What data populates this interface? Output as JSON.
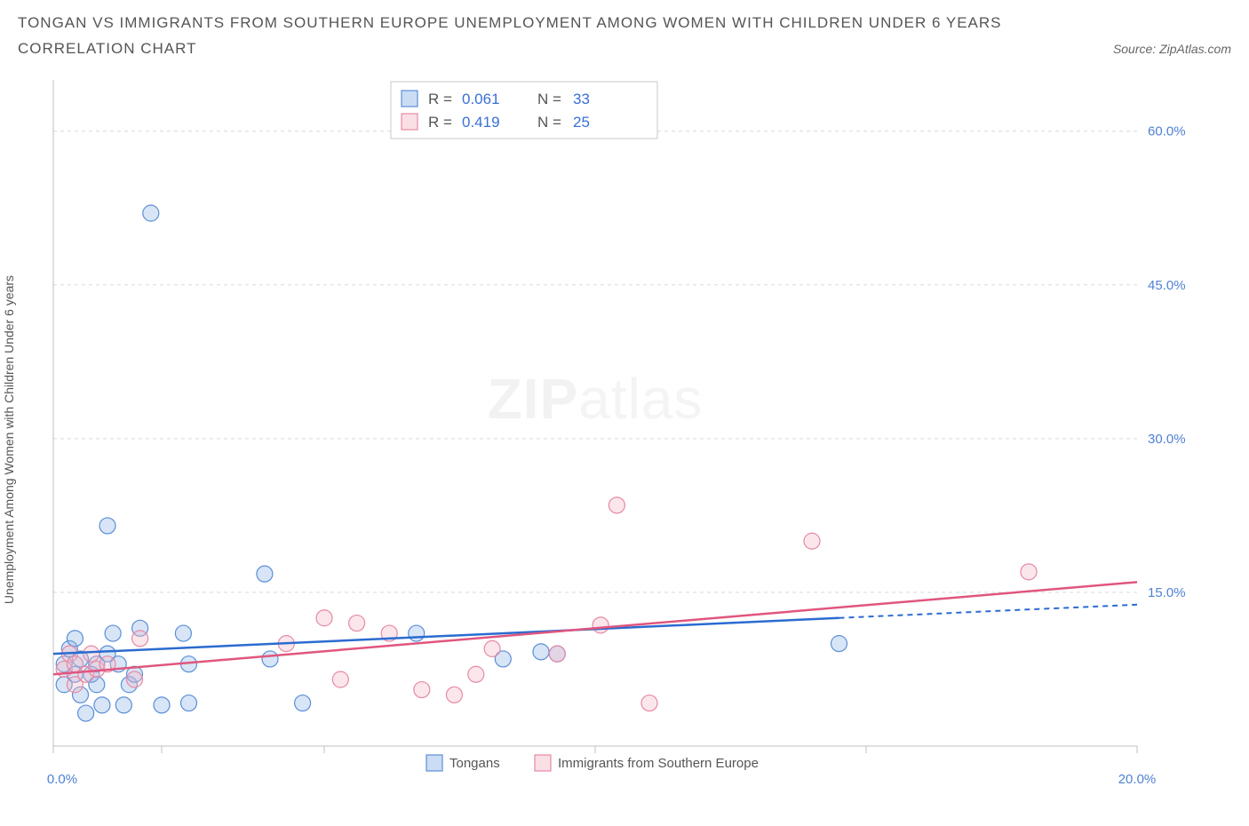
{
  "header": {
    "title_line1": "TONGAN VS IMMIGRANTS FROM SOUTHERN EUROPE UNEMPLOYMENT AMONG WOMEN WITH CHILDREN UNDER 6 YEARS",
    "title_line2": "CORRELATION CHART",
    "source_label": "Source: ZipAtlas.com"
  },
  "chart": {
    "type": "scatter",
    "y_axis_title": "Unemployment Among Women with Children Under 6 years",
    "watermark_strong": "ZIP",
    "watermark_thin": "atlas",
    "background_color": "#ffffff",
    "grid_color": "#d9d9d9",
    "axis_color": "#bfbfbf",
    "tick_label_color": "#4f81d4",
    "xlim": [
      0,
      20
    ],
    "ylim": [
      0,
      65
    ],
    "x_ticks": [
      0,
      2,
      5,
      10,
      15,
      20
    ],
    "x_tick_labels": {
      "0": "0.0%",
      "20": "20.0%"
    },
    "y_grid": [
      15,
      30,
      45,
      60
    ],
    "y_tick_labels": [
      "15.0%",
      "30.0%",
      "45.0%",
      "60.0%"
    ],
    "legend_top": {
      "rows": [
        {
          "color_fill": "#8bb4e8",
          "color_stroke": "#5b8fd6",
          "r_label": "R =",
          "r_value": "0.061",
          "n_label": "N =",
          "n_value": "33"
        },
        {
          "color_fill": "#f3b7c6",
          "color_stroke": "#e58aa4",
          "r_label": "R =",
          "r_value": "0.419",
          "n_label": "N =",
          "n_value": "25"
        }
      ]
    },
    "legend_bottom": [
      {
        "swatch_fill": "#8bb4e8",
        "swatch_stroke": "#5b8fd6",
        "label": "Tongans"
      },
      {
        "swatch_fill": "#f3b7c6",
        "swatch_stroke": "#e58aa4",
        "label": "Immigrants from Southern Europe"
      }
    ],
    "series": [
      {
        "name": "Tongans",
        "fill": "#8bb4e8",
        "stroke": "#5b8fd6",
        "marker_radius": 9,
        "trend_color": "#2b6bd0",
        "trend": {
          "x1": 0,
          "y1": 9.0,
          "x2": 14.5,
          "y2": 12.5,
          "ext_x2": 20,
          "ext_y2": 13.8
        },
        "points": [
          [
            0.2,
            8.0
          ],
          [
            0.2,
            6.0
          ],
          [
            0.3,
            9.5
          ],
          [
            0.4,
            7.0
          ],
          [
            0.4,
            10.5
          ],
          [
            0.5,
            8.5
          ],
          [
            0.5,
            5.0
          ],
          [
            0.6,
            3.2
          ],
          [
            0.7,
            7.0
          ],
          [
            0.8,
            8.0
          ],
          [
            0.8,
            6.0
          ],
          [
            0.9,
            4.0
          ],
          [
            1.0,
            21.5
          ],
          [
            1.0,
            9.0
          ],
          [
            1.1,
            11.0
          ],
          [
            1.2,
            8.0
          ],
          [
            1.3,
            4.0
          ],
          [
            1.4,
            6.0
          ],
          [
            1.5,
            7.0
          ],
          [
            1.6,
            11.5
          ],
          [
            1.8,
            52.0
          ],
          [
            2.0,
            4.0
          ],
          [
            2.4,
            11.0
          ],
          [
            2.5,
            4.2
          ],
          [
            2.5,
            8.0
          ],
          [
            3.9,
            16.8
          ],
          [
            4.0,
            8.5
          ],
          [
            4.6,
            4.2
          ],
          [
            6.7,
            11.0
          ],
          [
            8.3,
            8.5
          ],
          [
            9.0,
            9.2
          ],
          [
            9.3,
            9.0
          ],
          [
            14.5,
            10.0
          ]
        ]
      },
      {
        "name": "Immigrants from Southern Europe",
        "fill": "#f3b7c6",
        "stroke": "#e58aa4",
        "marker_radius": 9,
        "trend_color": "#e0567e",
        "trend": {
          "x1": 0,
          "y1": 7.0,
          "x2": 20,
          "y2": 16.0
        },
        "points": [
          [
            0.2,
            7.5
          ],
          [
            0.3,
            9.0
          ],
          [
            0.4,
            6.0
          ],
          [
            0.4,
            8.0
          ],
          [
            0.6,
            7.0
          ],
          [
            0.7,
            9.0
          ],
          [
            0.8,
            7.5
          ],
          [
            1.0,
            8.0
          ],
          [
            1.5,
            6.5
          ],
          [
            1.6,
            10.5
          ],
          [
            4.3,
            10.0
          ],
          [
            5.0,
            12.5
          ],
          [
            5.3,
            6.5
          ],
          [
            5.6,
            12.0
          ],
          [
            6.2,
            11.0
          ],
          [
            6.8,
            5.5
          ],
          [
            7.4,
            5.0
          ],
          [
            7.8,
            7.0
          ],
          [
            8.1,
            9.5
          ],
          [
            9.3,
            9.0
          ],
          [
            10.1,
            11.8
          ],
          [
            10.4,
            23.5
          ],
          [
            11.0,
            4.2
          ],
          [
            14.0,
            20.0
          ],
          [
            18.0,
            17.0
          ]
        ]
      }
    ]
  }
}
